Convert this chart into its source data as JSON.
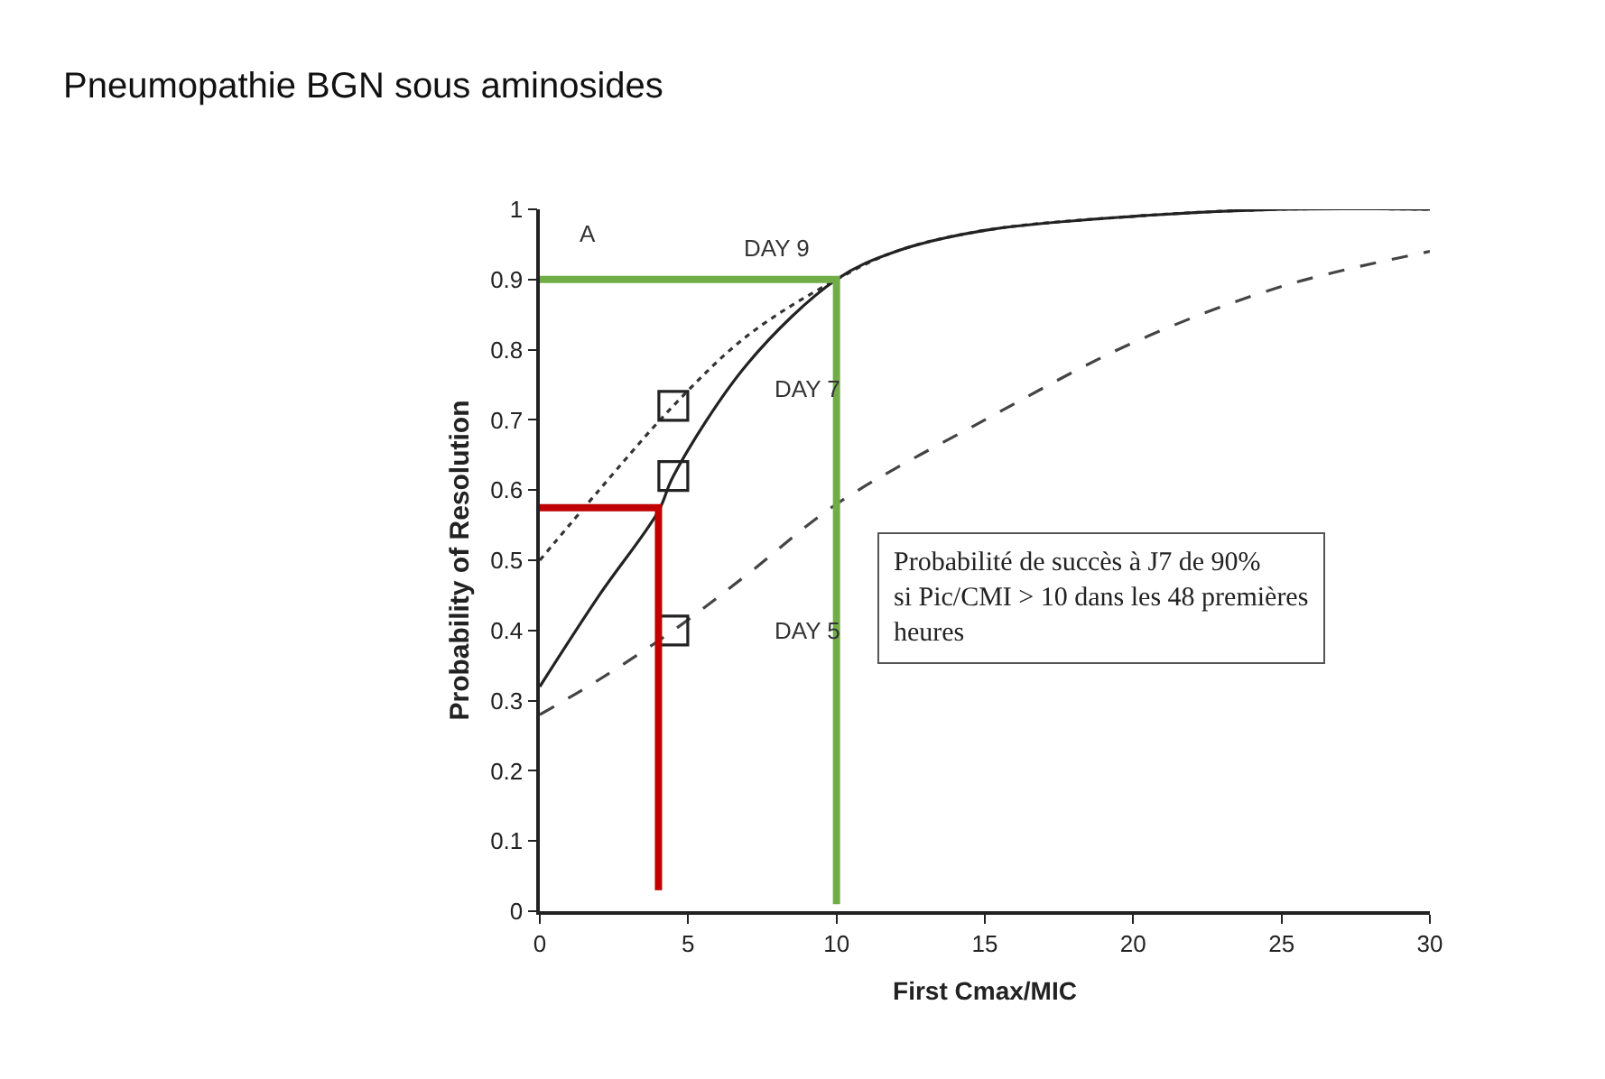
{
  "chart_data": {
    "type": "line",
    "title": "Pneumopathie BGN sous aminosides",
    "xlabel": "First Cmax/MIC",
    "ylabel": "Probability of Resolution",
    "xlim": [
      0,
      30
    ],
    "xticks": [
      0,
      5,
      10,
      15,
      20,
      25,
      30
    ],
    "ylim": [
      0,
      1
    ],
    "yticks": [
      0,
      0.1,
      0.2,
      0.3,
      0.4,
      0.5,
      0.6,
      0.7,
      0.8,
      0.9,
      1
    ],
    "marker": "none",
    "series": [
      {
        "color": "#333333",
        "line_style": "dotted",
        "x": [
          0,
          2,
          4.5,
          7,
          10,
          12,
          15,
          20,
          25,
          30
        ],
        "values": [
          0.5,
          0.6,
          0.72,
          0.82,
          0.9,
          0.94,
          0.97,
          0.99,
          1.0,
          1.0
        ]
      },
      {
        "color": "#222222",
        "line_style": "solid",
        "x": [
          0,
          2,
          4,
          4.5,
          7,
          10,
          12,
          15,
          20,
          25,
          30
        ],
        "values": [
          0.32,
          0.45,
          0.57,
          0.62,
          0.78,
          0.9,
          0.94,
          0.97,
          0.99,
          1.0,
          1.0
        ]
      },
      {
        "color": "#444444",
        "line_style": "dashed",
        "x": [
          0,
          2,
          4.5,
          7,
          10,
          15,
          20,
          25,
          30
        ],
        "values": [
          0.28,
          0.33,
          0.4,
          0.48,
          0.58,
          0.7,
          0.81,
          0.89,
          0.94
        ]
      },
      {
        "type": "scatter",
        "marker": "square",
        "color": "#222222",
        "x": [
          4.5,
          4.5,
          4.5
        ],
        "values": [
          0.72,
          0.62,
          0.4
        ]
      },
      {
        "color": "#c00000",
        "x": [
          0,
          4,
          4
        ],
        "values": [
          0.575,
          0.575,
          0.03
        ]
      },
      {
        "color": "#70ad47",
        "x": [
          0,
          10,
          10
        ],
        "values": [
          0.9,
          0.9,
          0.01
        ]
      }
    ],
    "annotations": [
      "A",
      "Probabilité de succès à J7 de 90%\nsi Pic/CMI > 10 dans les 48 premières\nheures",
      "DAY 9",
      "DAY 7",
      "DAY 5"
    ]
  }
}
